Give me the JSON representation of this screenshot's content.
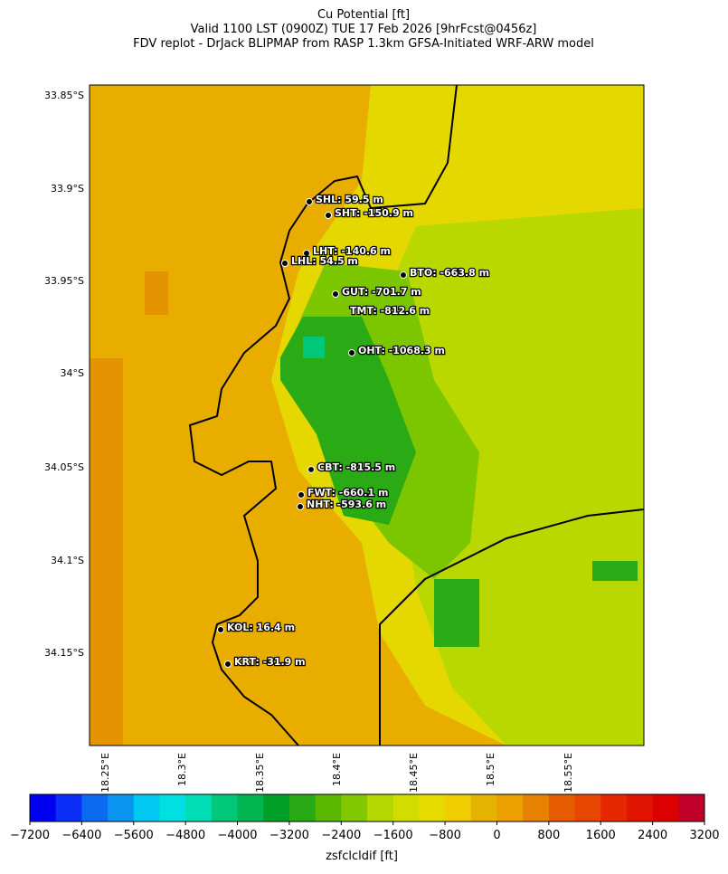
{
  "title": [
    "Cu Potential [ft]",
    "Valid 1100 LST (0900Z) TUE 17 Feb 2026 [9hrFcst@0456z]",
    "FDV replot - DrJack BLIPMAP from RASP 1.3km GFSA-Initiated WRF-ARW model"
  ],
  "lat_labels": [
    "33.85°S",
    "33.9°S",
    "33.95°S",
    "34°S",
    "34.05°S",
    "34.1°S",
    "34.15°S"
  ],
  "lon_labels": [
    "18.25°E",
    "18.3°E",
    "18.35°E",
    "18.4°E",
    "18.45°E",
    "18.5°E",
    "18.55°E"
  ],
  "stations": [
    "SHL: 59.5 m",
    "SHT: -150.9 m",
    "LHT: -140.6 m",
    "LHL: 54.5 m",
    "BTO: -663.8 m",
    "GUT: -701.7 m",
    "TMT: -812.6 m",
    "OHT: -1068.3 m",
    "CBT: -815.5 m",
    "FWT: -660.1 m",
    "NHT: -593.6 m",
    "KOL: 16.4 m",
    "KRT: -31.9 m"
  ],
  "colorbar": {
    "label": "zsfclcldif [ft]",
    "lim": [
      -7200,
      3200
    ],
    "ticks": [
      {
        "value": -7200,
        "label": "−7200"
      },
      {
        "value": -6400,
        "label": "−6400"
      },
      {
        "value": -5600,
        "label": "−5600"
      },
      {
        "value": -4800,
        "label": "−4800"
      },
      {
        "value": -4000,
        "label": "−4000"
      },
      {
        "value": -3200,
        "label": "−3200"
      },
      {
        "value": -2400,
        "label": "−2400"
      },
      {
        "value": -1600,
        "label": "−1600"
      },
      {
        "value": -800,
        "label": "−800"
      },
      0,
      800,
      1600,
      2400,
      3200
    ],
    "colors": [
      "#0000f0",
      "#0a2ef5",
      "#0a6af0",
      "#0a96f0",
      "#00c8f0",
      "#00e0e0",
      "#00dcb4",
      "#00c878",
      "#00b450",
      "#00a028",
      "#28aa14",
      "#5ab800",
      "#82c800",
      "#b4d700",
      "#d2dc00",
      "#e6dc00",
      "#f0cd00",
      "#e6b400",
      "#eba000",
      "#e68200",
      "#e65a00",
      "#e64600",
      "#e62800",
      "#e01400",
      "#dc0000",
      "#c00028"
    ]
  }
}
